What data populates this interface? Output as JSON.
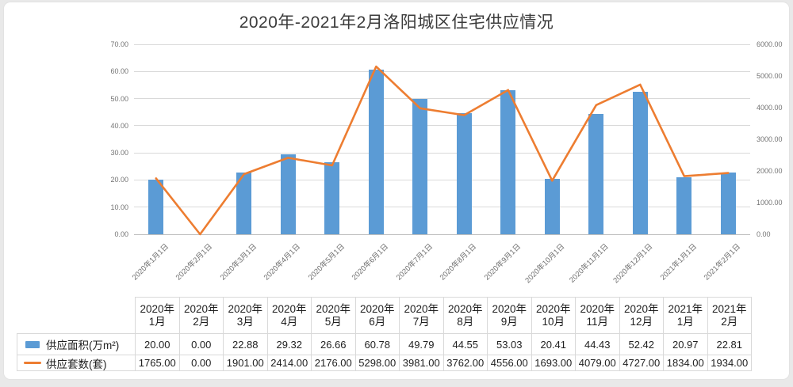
{
  "colors": {
    "page_bg": "#e9e9e9",
    "panel_bg": "#ffffff",
    "bar": "#5B9BD5",
    "line": "#ED7D31",
    "grid": "#D9D9D9",
    "axis_line": "#BFBFBF",
    "axis_text": "#737373",
    "title_text": "#3b3b3b",
    "table_border": "#D9D9D9",
    "table_text": "#1f1f1f"
  },
  "chart_data": {
    "type": "bar+line combo",
    "title": "2020年-2021年2月洛阳城区住宅供应情况",
    "x_axis_labels": [
      "2020年1月1日",
      "2020年2月1日",
      "2020年3月1日",
      "2020年4月1日",
      "2020年5月1日",
      "2020年6月1日",
      "2020年7月1日",
      "2020年8月1日",
      "2020年9月1日",
      "2020年10月1日",
      "2020年11月1日",
      "2020年12月1日",
      "2021年1月1日",
      "2021年2月1日"
    ],
    "table_headers": [
      [
        "2020年",
        "1月"
      ],
      [
        "2020年",
        "2月"
      ],
      [
        "2020年",
        "3月"
      ],
      [
        "2020年",
        "4月"
      ],
      [
        "2020年",
        "5月"
      ],
      [
        "2020年",
        "6月"
      ],
      [
        "2020年",
        "7月"
      ],
      [
        "2020年",
        "8月"
      ],
      [
        "2020年",
        "9月"
      ],
      [
        "2020年",
        "10月"
      ],
      [
        "2020年",
        "11月"
      ],
      [
        "2020年",
        "12月"
      ],
      [
        "2021年",
        "1月"
      ],
      [
        "2021年",
        "2月"
      ]
    ],
    "series": [
      {
        "name": "供应面积(万m²)",
        "type": "bar",
        "axis": "left",
        "values": [
          20.0,
          0.0,
          22.88,
          29.32,
          26.66,
          60.78,
          49.79,
          44.55,
          53.03,
          20.41,
          44.43,
          52.42,
          20.97,
          22.81
        ],
        "table_values": [
          "20.00",
          "0.00",
          "22.88",
          "29.32",
          "26.66",
          "60.78",
          "49.79",
          "44.55",
          "53.03",
          "20.41",
          "44.43",
          "52.42",
          "20.97",
          "22.81"
        ]
      },
      {
        "name": "供应套数(套)",
        "type": "line",
        "axis": "right",
        "values": [
          1765,
          0,
          1901,
          2414,
          2176,
          5298,
          3981,
          3762,
          4556,
          1693,
          4079,
          4727,
          1834,
          1934
        ],
        "table_values": [
          "1765.00",
          "0.00",
          "1901.00",
          "2414.00",
          "2176.00",
          "5298.00",
          "3981.00",
          "3762.00",
          "4556.00",
          "1693.00",
          "4079.00",
          "4727.00",
          "1834.00",
          "1934.00"
        ]
      }
    ],
    "left_axis": {
      "min": 0,
      "max": 70,
      "step": 10,
      "ticks": [
        "0.00",
        "10.00",
        "20.00",
        "30.00",
        "40.00",
        "50.00",
        "60.00",
        "70.00"
      ]
    },
    "right_axis": {
      "min": 0,
      "max": 6000,
      "step": 1000,
      "ticks": [
        "0.00",
        "1000.00",
        "2000.00",
        "3000.00",
        "4000.00",
        "5000.00",
        "6000.00"
      ]
    },
    "gridlines": true,
    "legend_position": "in-table-left-column"
  }
}
